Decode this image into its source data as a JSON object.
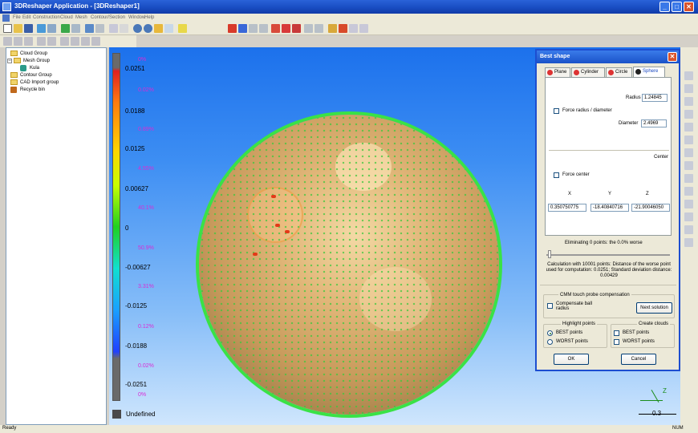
{
  "window": {
    "title": "3DReshaper Application - [3DReshaper1]"
  },
  "menu": [
    "File",
    "Edit",
    "Construction",
    "Cloud",
    "Mesh",
    "Contour/Section",
    "Window",
    "Help"
  ],
  "tree": {
    "items": [
      {
        "label": "Cloud Group"
      },
      {
        "label": "Mesh Group"
      },
      {
        "label": "Kula"
      },
      {
        "label": "Contour Group"
      },
      {
        "label": "CAD Import group"
      },
      {
        "label": "Recycle bin"
      }
    ]
  },
  "scale": {
    "values": [
      "0.0251",
      "0.0188",
      "0.0125",
      "0.00627",
      "0",
      "-0.00627",
      "-0.0125",
      "-0.0188",
      "-0.0251"
    ],
    "percents": [
      "0%",
      "0.02%",
      "0.89%",
      "4.55%",
      "40.1%",
      "50.9%",
      "3.31%",
      "0.12%",
      "0.02%",
      "0%"
    ],
    "undefined_label": "Undefined"
  },
  "viewport": {
    "axis_z": "Z",
    "scale_ref": "0.3"
  },
  "dialog": {
    "title": "Best shape",
    "tabs": [
      "Plane",
      "Cylinder",
      "Circle",
      "Sphere"
    ],
    "radius_label": "Radius",
    "radius_value": "1.24845",
    "force_radius_label": "Force radius / diameter",
    "diameter_label": "Diameter",
    "diameter_value": "2.4969",
    "center_label": "Center",
    "force_center_label": "Force center",
    "x_label": "X",
    "y_label": "Y",
    "z_label": "Z",
    "x_value": "0.350750775",
    "y_value": "-18.40840716",
    "z_value": "-21.90046050",
    "eliminating_label": "Eliminating 0 points: the 0.0% worse",
    "calc_text": "Calculation with 10001 points: Distance of the worse point used for computation: 0.0251; Standard deviation distance: 0.00429",
    "cmm_label": "CMM touch probe compensation",
    "compensate_label": "Compensate ball radius",
    "next_solution": "Next solution",
    "highlight_label": "Highlight points",
    "create_clouds_label": "Create clouds",
    "best_points": "BEST points",
    "worst_points": "WORST points",
    "ok": "OK",
    "cancel": "Cancel"
  },
  "status": {
    "left": "Ready",
    "right": "NUM"
  }
}
